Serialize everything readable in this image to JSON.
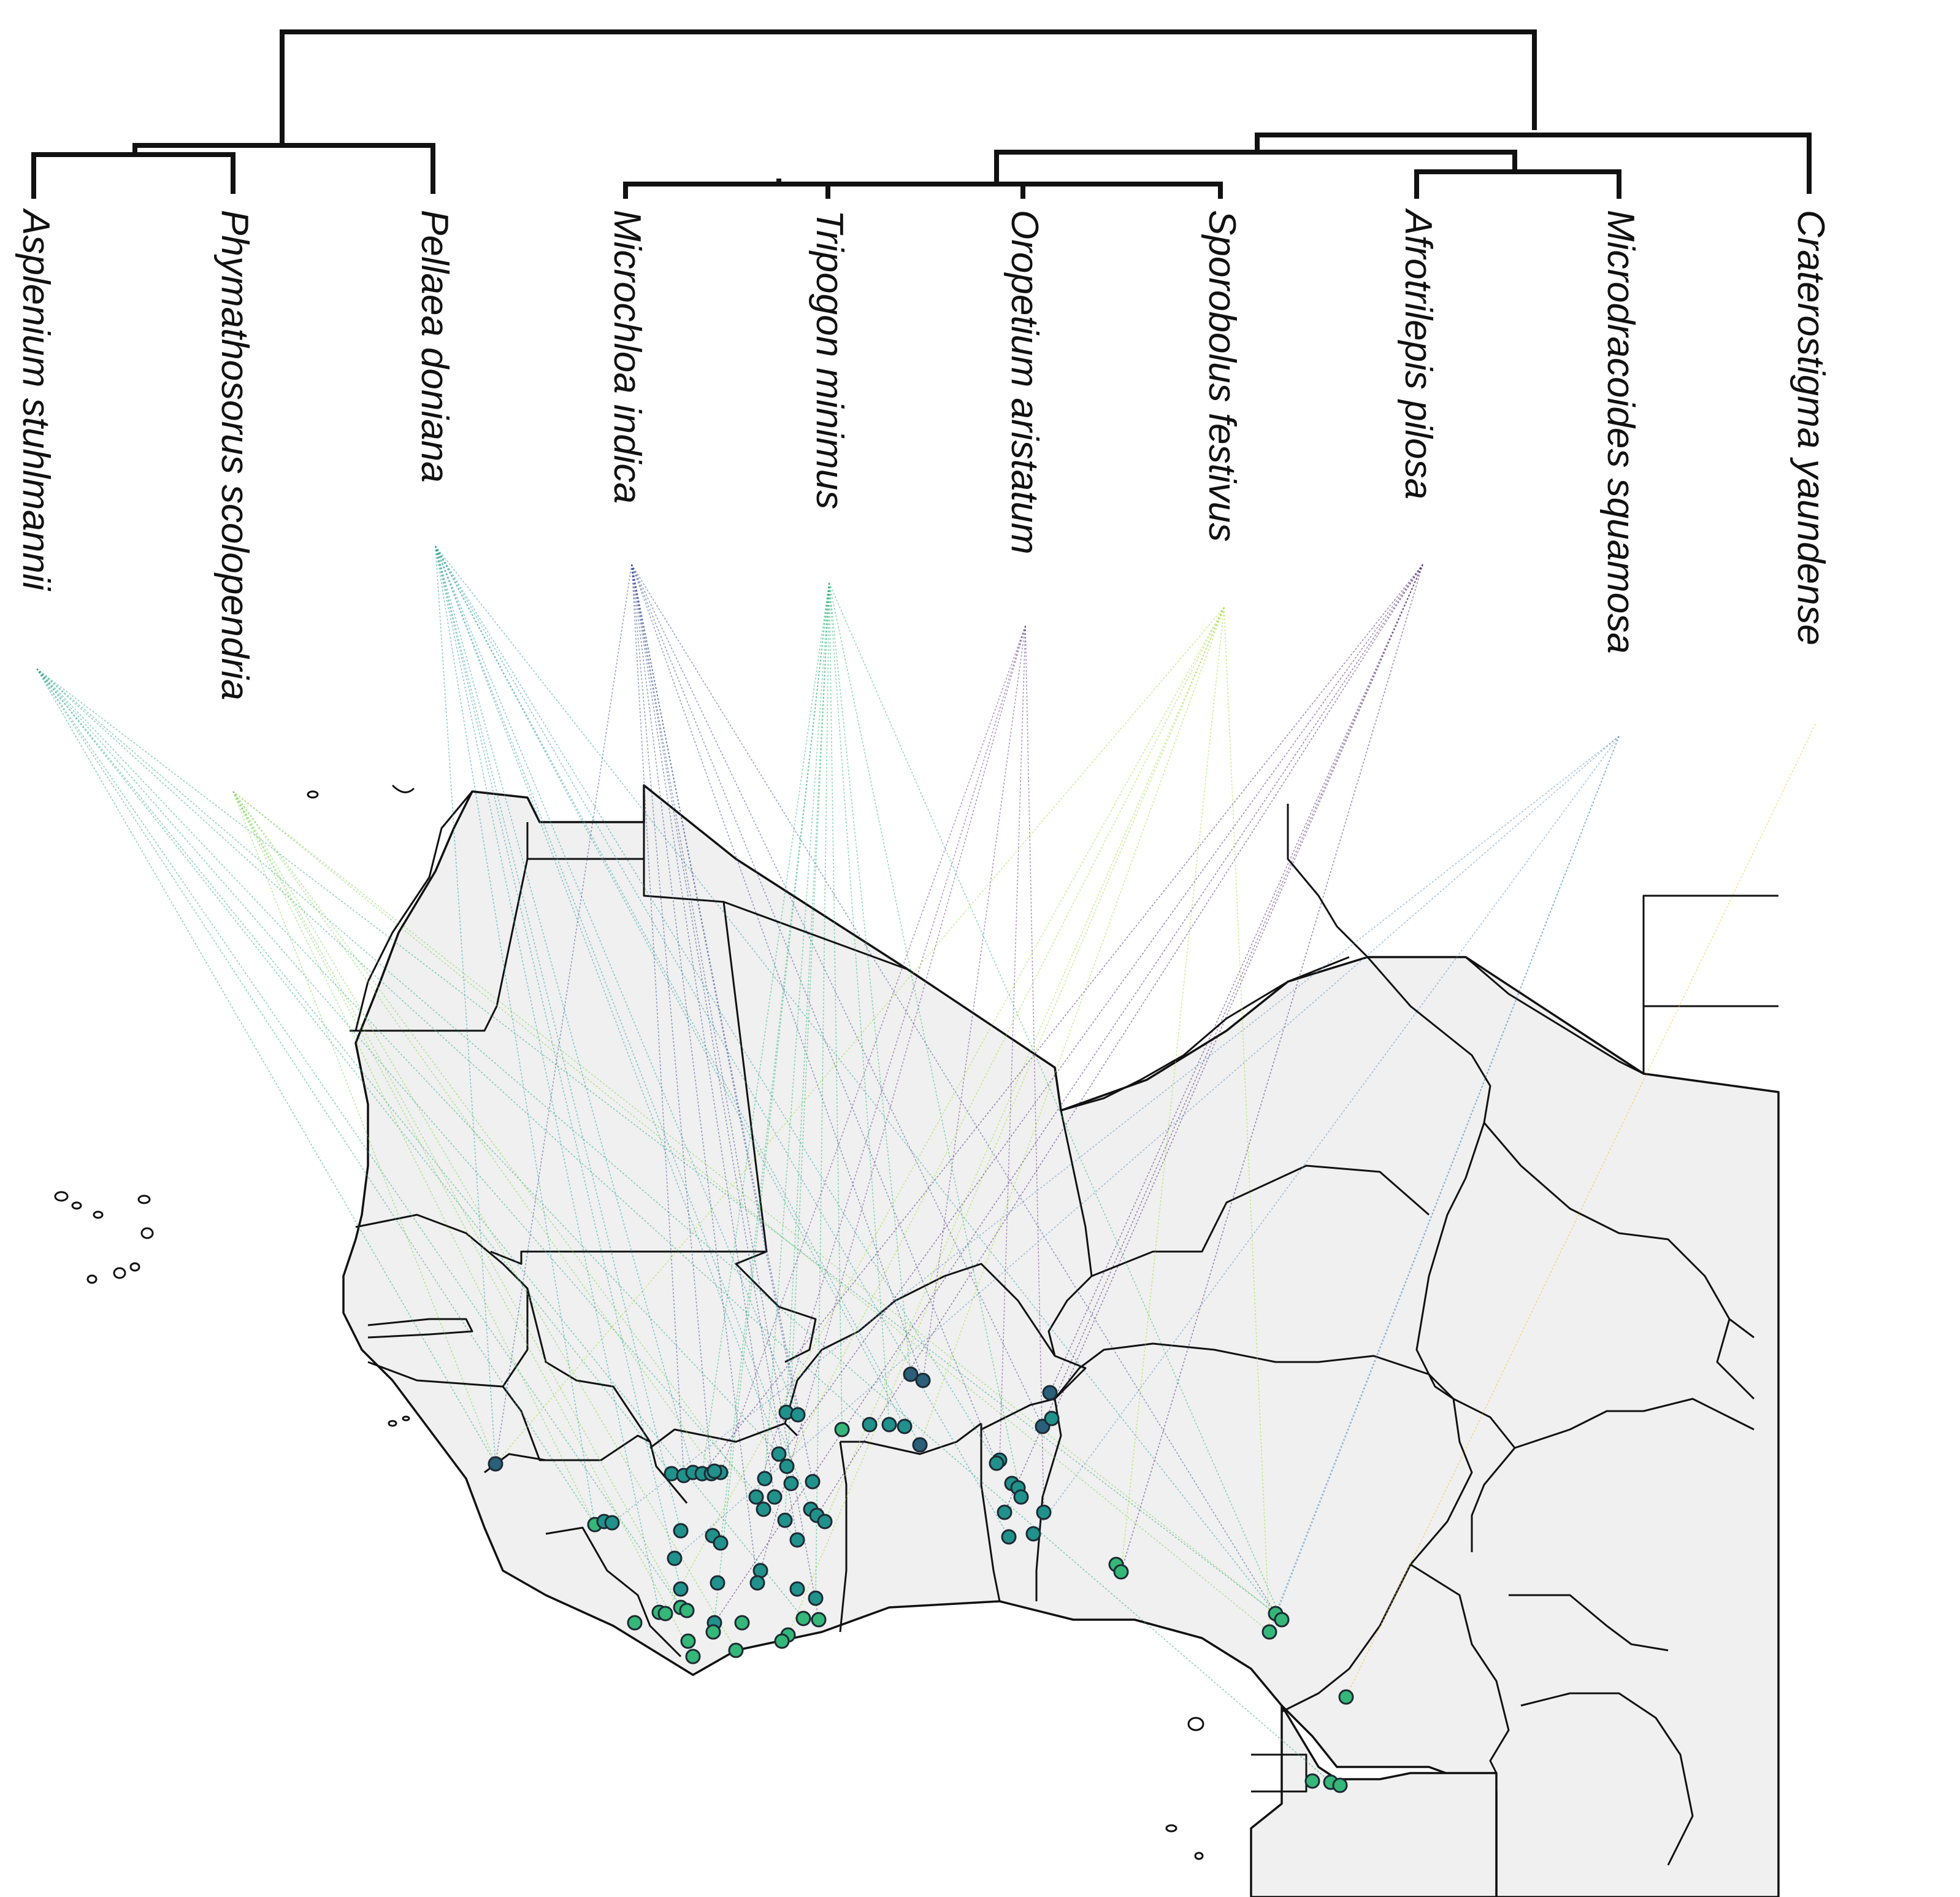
{
  "taxa": [
    {
      "name": "Asplenium stuhlmannii",
      "color": "#22a884"
    },
    {
      "name": "Phymathosorus scolopendria",
      "color": "#7ad151"
    },
    {
      "name": "Pellaea doniana",
      "color": "#2a9d9f"
    },
    {
      "name": "Microchloa indica",
      "color": "#3b4f8f"
    },
    {
      "name": "Tripogon minimus",
      "color": "#2fb47c"
    },
    {
      "name": "Oropetium aristatum",
      "color": "#6a3d8c"
    },
    {
      "name": "Sporobolus festivus",
      "color": "#a0da39"
    },
    {
      "name": "Afrotrilepis pilosa",
      "color": "#482475"
    },
    {
      "name": "Microdracoides squamosa",
      "color": "#5a8fbf"
    },
    {
      "name": "Craterostigma yaundense",
      "color": "#f2c12e"
    }
  ],
  "colors": {
    "land": "#f0f0f0",
    "border": "#111111",
    "tree": "#111111",
    "point_dark": "#2b5f7a",
    "point_teal": "#21918c",
    "point_green": "#35b779"
  }
}
